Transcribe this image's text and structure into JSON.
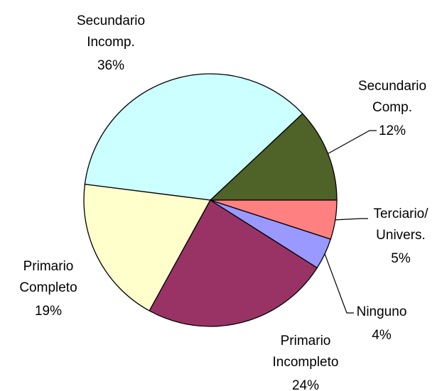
{
  "chart_data": {
    "type": "pie",
    "categories": [
      "Secundario Comp.",
      "Secundario Incomp.",
      "Primario Completo",
      "Primario Incompleto",
      "Ninguno",
      "Terciario/ Univers."
    ],
    "values": [
      12,
      36,
      19,
      24,
      4,
      5
    ],
    "value_labels": [
      "12%",
      "36%",
      "19%",
      "24%",
      "4%",
      "5%"
    ],
    "colors": [
      "#4f6228",
      "#ccffff",
      "#ffffcc",
      "#993366",
      "#9999ff",
      "#ff8080"
    ]
  }
}
